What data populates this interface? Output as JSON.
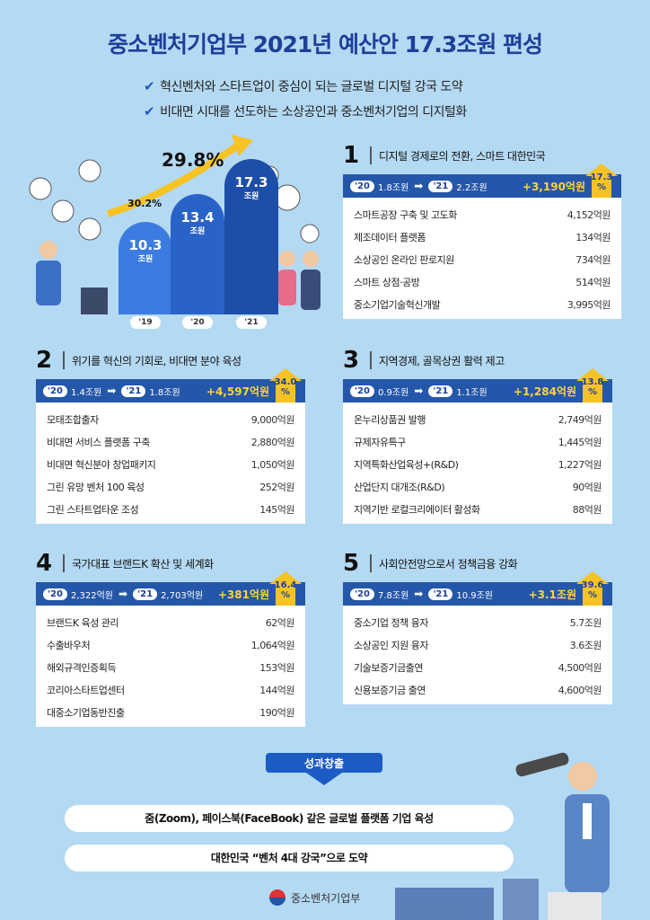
{
  "title": "중소벤처기업부 2021년 예산안 17.3조원 편성",
  "subtitles": [
    "혁신벤처와 스타트업이 중심이 되는 글로벌 디지털 강국 도약",
    "비대면 시대를 선도하는 소상공인과 중소벤처기업의 디지털화"
  ],
  "chart_data": {
    "type": "bar",
    "categories": [
      "'19",
      "'20",
      "'21"
    ],
    "values": [
      10.3,
      13.4,
      17.3
    ],
    "unit": "조원",
    "growth": [
      "30.2%",
      "29.8%"
    ],
    "colors": [
      "#3c7be0",
      "#2a63c7",
      "#1d4ea8"
    ]
  },
  "sections": [
    {
      "num": "1",
      "title": "디지털 경제로의 전환, 스마트 대한민국",
      "y20": "'20",
      "v20": "1.8조원",
      "y21": "'21",
      "v21": "2.2조원",
      "increase": "+3,190억원",
      "pct": "17.3",
      "pct_unit": "%",
      "items": [
        [
          "스마트공장 구축 및 고도화",
          "4,152억원"
        ],
        [
          "제조데이터 플랫폼",
          "134억원"
        ],
        [
          "소상공인 온라인 판로지원",
          "734억원"
        ],
        [
          "스마트 상점·공방",
          "514억원"
        ],
        [
          "중소기업기술혁신개발",
          "3,995억원"
        ]
      ]
    },
    {
      "num": "2",
      "title": "위기를 혁신의 기회로, 비대면 분야 육성",
      "y20": "'20",
      "v20": "1.4조원",
      "y21": "'21",
      "v21": "1.8조원",
      "increase": "+4,597억원",
      "pct": "34.0",
      "pct_unit": "%",
      "items": [
        [
          "모태조합출자",
          "9,000억원"
        ],
        [
          "비대면 서비스 플랫폼 구축",
          "2,880억원"
        ],
        [
          "비대면 혁신분야 창업패키지",
          "1,050억원"
        ],
        [
          "그린 유망 벤처 100 육성",
          "252억원"
        ],
        [
          "그린 스타트업타운 조성",
          "145억원"
        ]
      ]
    },
    {
      "num": "3",
      "title": "지역경제, 골목상권 활력 제고",
      "y20": "'20",
      "v20": "0.9조원",
      "y21": "'21",
      "v21": "1.1조원",
      "increase": "+1,284억원",
      "pct": "13.8",
      "pct_unit": "%",
      "items": [
        [
          "온누리상품권 발행",
          "2,749억원"
        ],
        [
          "규제자유특구",
          "1,445억원"
        ],
        [
          "지역특화산업육성+(R&D)",
          "1,227억원"
        ],
        [
          "산업단지 대개조(R&D)",
          "90억원"
        ],
        [
          "지역기반 로컬크리에이터 활성화",
          "88억원"
        ]
      ]
    },
    {
      "num": "4",
      "title": "국가대표 브랜드K 확산 및 세계화",
      "y20": "'20",
      "v20": "2,322억원",
      "y21": "'21",
      "v21": "2,703억원",
      "increase": "+381억원",
      "pct": "16.4",
      "pct_unit": "%",
      "items": [
        [
          "브랜드K 육성 관리",
          "62억원"
        ],
        [
          "수출바우처",
          "1,064억원"
        ],
        [
          "해외규격인증획득",
          "153억원"
        ],
        [
          "코리아스타트업센터",
          "144억원"
        ],
        [
          "대중소기업동반진출",
          "190억원"
        ]
      ]
    },
    {
      "num": "5",
      "title": "사회안전망으로서 정책금융 강화",
      "y20": "'20",
      "v20": "7.8조원",
      "y21": "'21",
      "v21": "10.9조원",
      "increase": "+3.1조원",
      "pct": "39.6",
      "pct_unit": "%",
      "items": [
        [
          "중소기업 정책 융자",
          "5.7조원"
        ],
        [
          "소상공인 지원 융자",
          "3.6조원"
        ],
        [
          "기술보증기금출연",
          "4,500억원"
        ],
        [
          "신용보증기금 출연",
          "4,600억원"
        ]
      ]
    }
  ],
  "outcome_label": "성과창출",
  "outcomes": [
    "줌(Zoom), 페이스북(FaceBook) 같은 글로벌 플랫폼 기업 육성",
    "대한민국 “벤처 4대 강국”으로 도약"
  ],
  "ministry": "중소벤처기업부",
  "arrow_glyph": "➡"
}
